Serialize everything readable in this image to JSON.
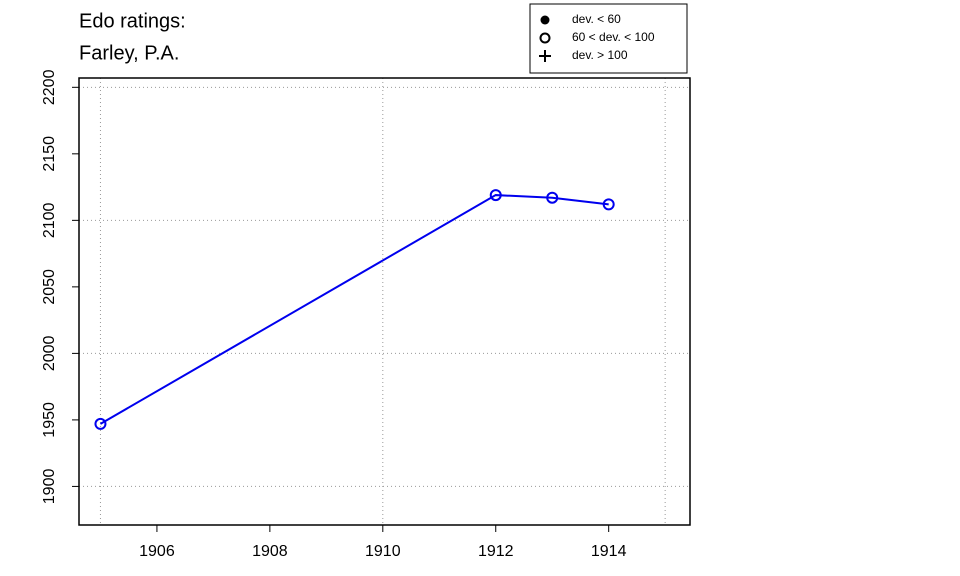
{
  "chart_data": {
    "type": "line",
    "title": "Edo ratings:",
    "subtitle": "Farley, P.A.",
    "x": [
      1905,
      1912,
      1913,
      1914
    ],
    "series": [
      {
        "name": "60 < dev. < 100",
        "color": "#0000ee",
        "marker": "open-circle",
        "values": [
          1947,
          2119,
          2117,
          2112
        ]
      }
    ],
    "xlim": [
      1904.62,
      1915.44
    ],
    "xticks": [
      1906,
      1908,
      1910,
      1912,
      1914
    ],
    "ylim": [
      1871,
      2207
    ],
    "yticks": [
      1900,
      1950,
      2000,
      2050,
      2100,
      2150,
      2200
    ],
    "grid": true,
    "xgrid": [
      1905,
      1910,
      1915
    ],
    "ygrid": [
      1900,
      2000,
      2100,
      2200
    ],
    "legend_position": "top-right",
    "legend": [
      {
        "label": "dev. < 60",
        "marker": "filled-circle"
      },
      {
        "label": "60 < dev. < 100",
        "marker": "open-circle"
      },
      {
        "label": "dev. > 100",
        "marker": "plus"
      }
    ]
  }
}
